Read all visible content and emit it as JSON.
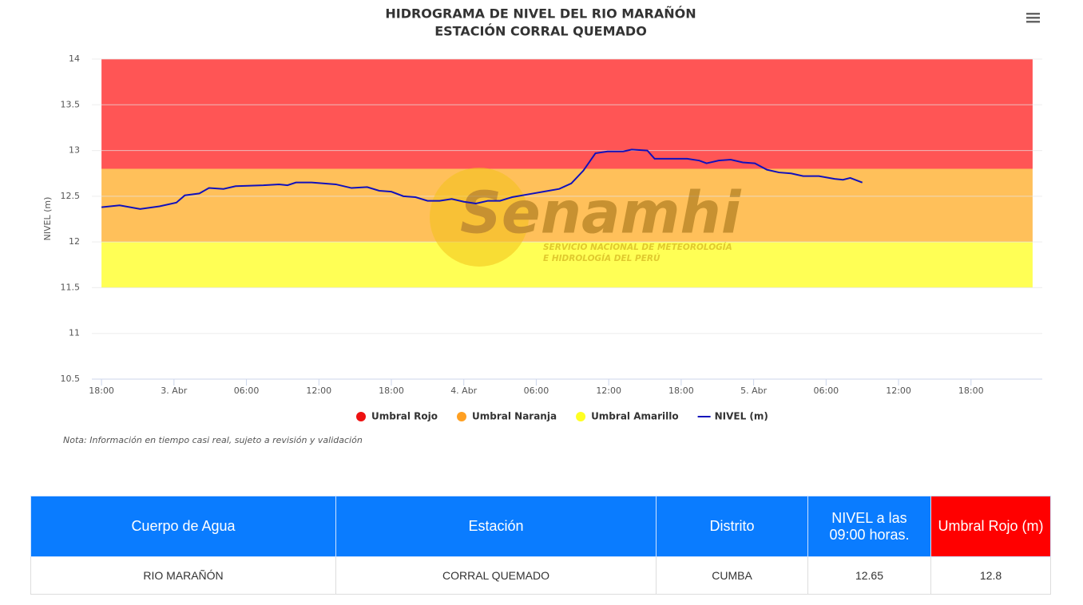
{
  "chart_data": {
    "type": "line",
    "title": "HIDROGRAMA DE NIVEL DEL RIO MARAÑÓN",
    "subtitle": "ESTACIÓN CORRAL QUEMADO",
    "y_label": "NIVEL (m)",
    "note": "Nota: Información en tiempo casi real, sujeto a revisión y validación",
    "watermark": {
      "name": "Senamhi",
      "line1": "SERVICIO NACIONAL DE METEOROLOGÍA",
      "line2": "E HIDROLOGÍA DEL PERÚ"
    },
    "xlim": [
      -0.8,
      77.9
    ],
    "xticks": [
      {
        "value": 0,
        "label": "18:00"
      },
      {
        "value": 6,
        "label": "3. Abr"
      },
      {
        "value": 12,
        "label": "06:00"
      },
      {
        "value": 18,
        "label": "12:00"
      },
      {
        "value": 24,
        "label": "18:00"
      },
      {
        "value": 30,
        "label": "4. Abr"
      },
      {
        "value": 36,
        "label": "06:00"
      },
      {
        "value": 42,
        "label": "12:00"
      },
      {
        "value": 48,
        "label": "18:00"
      },
      {
        "value": 54,
        "label": "5. Abr"
      },
      {
        "value": 60,
        "label": "06:00"
      },
      {
        "value": 66,
        "label": "12:00"
      },
      {
        "value": 72,
        "label": "18:00"
      }
    ],
    "ylim": [
      10.5,
      14
    ],
    "yticks": [
      10.5,
      11,
      11.5,
      12,
      12.5,
      13,
      13.5,
      14
    ],
    "grid": true,
    "band_x": [
      0,
      77.1
    ],
    "bands": [
      {
        "name": "Umbral Rojo",
        "color": "#ff5555",
        "from": 12.8,
        "to": 14
      },
      {
        "name": "Umbral Naranja",
        "color": "#ffc05a",
        "from": 12,
        "to": 12.8
      },
      {
        "name": "Umbral Amarillo",
        "color": "#ffff55",
        "from": 11.5,
        "to": 12
      }
    ],
    "legend_colors": [
      "#ee1111",
      "#ffa022",
      "#ffff22"
    ],
    "series": [
      {
        "name": "NIVEL (m)",
        "color": "#1111bb",
        "x": [
          0,
          1.5,
          3.2,
          4.8,
          6.2,
          6.9,
          8.1,
          8.9,
          10.1,
          11.1,
          13.4,
          14.7,
          15.4,
          16.1,
          17.4,
          19.4,
          20.7,
          22,
          23,
          24,
          25,
          26,
          27,
          28,
          29,
          30,
          31,
          32,
          33,
          34,
          35.3,
          36.6,
          37.9,
          38.9,
          39.9,
          40.9,
          41.9,
          43.2,
          43.9,
          45.2,
          45.8,
          48.5,
          49.5,
          50.1,
          51.1,
          52.1,
          53.1,
          54.1,
          55.1,
          56.1,
          57.1,
          58.1,
          59.4,
          60.7,
          61.4,
          62,
          63
        ],
        "values": [
          12.38,
          12.4,
          12.36,
          12.39,
          12.43,
          12.51,
          12.53,
          12.59,
          12.58,
          12.61,
          12.62,
          12.63,
          12.62,
          12.65,
          12.65,
          12.63,
          12.59,
          12.6,
          12.56,
          12.55,
          12.5,
          12.49,
          12.45,
          12.45,
          12.47,
          12.44,
          12.42,
          12.45,
          12.45,
          12.49,
          12.52,
          12.55,
          12.58,
          12.64,
          12.78,
          12.97,
          12.99,
          12.99,
          13.01,
          13.0,
          12.91,
          12.91,
          12.89,
          12.86,
          12.89,
          12.9,
          12.87,
          12.86,
          12.79,
          12.76,
          12.75,
          12.72,
          12.72,
          12.69,
          12.68,
          12.7,
          12.65
        ]
      }
    ]
  },
  "table": {
    "headers": [
      "Cuerpo de Agua",
      "Estación",
      "Distrito",
      "NIVEL a las 09:00 horas.",
      "Umbral Rojo (m)"
    ],
    "rows": [
      [
        "RIO MARAÑÓN",
        "CORRAL QUEMADO",
        "CUMBA",
        "12.65",
        "12.8"
      ]
    ]
  }
}
